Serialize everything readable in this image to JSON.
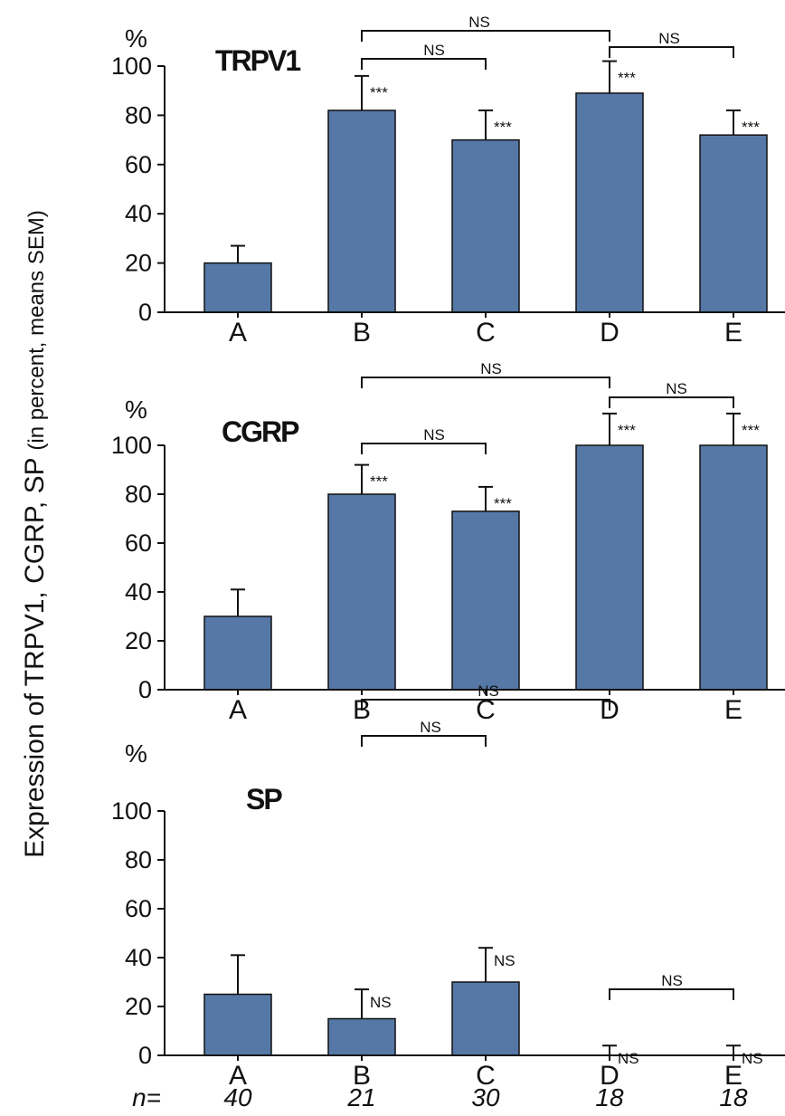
{
  "chart_data": [
    {
      "type": "bar",
      "title": "TRPV1",
      "unit_label": "%",
      "categories": [
        "A",
        "B",
        "C",
        "D",
        "E"
      ],
      "values": [
        20,
        82,
        70,
        89,
        72
      ],
      "errors": [
        7,
        14,
        12,
        13,
        10
      ],
      "significance": [
        "",
        "***",
        "***",
        "***",
        "***"
      ],
      "ylim": [
        0,
        100
      ],
      "yticks": [
        "0",
        "20",
        "40",
        "60",
        "80",
        "100"
      ],
      "comparisons": [
        {
          "from": "B",
          "to": "D",
          "label": "NS"
        },
        {
          "from": "B",
          "to": "C",
          "label": "NS"
        },
        {
          "from": "D",
          "to": "E",
          "label": "NS"
        }
      ],
      "color": "#5578a6"
    },
    {
      "type": "bar",
      "title": "CGRP",
      "unit_label": "%",
      "categories": [
        "A",
        "B",
        "C",
        "D",
        "E"
      ],
      "values": [
        30,
        80,
        73,
        100,
        100
      ],
      "errors": [
        11,
        12,
        10,
        13,
        13
      ],
      "significance": [
        "",
        "***",
        "***",
        "***",
        "***"
      ],
      "ylim": [
        0,
        100
      ],
      "yticks": [
        "0",
        "20",
        "40",
        "60",
        "80",
        "100"
      ],
      "comparisons": [
        {
          "from": "B",
          "to": "D",
          "label": "NS"
        },
        {
          "from": "B",
          "to": "C",
          "label": "NS"
        },
        {
          "from": "D",
          "to": "E",
          "label": "NS"
        }
      ],
      "color": "#5578a6"
    },
    {
      "type": "bar",
      "title": "SP",
      "unit_label": "%",
      "categories": [
        "A",
        "B",
        "C",
        "D",
        "E"
      ],
      "values": [
        25,
        15,
        30,
        0,
        0
      ],
      "errors": [
        16,
        12,
        14,
        4,
        4
      ],
      "significance": [
        "",
        "NS",
        "NS",
        "NS",
        "NS"
      ],
      "ylim": [
        0,
        100
      ],
      "yticks": [
        "0",
        "20",
        "40",
        "60",
        "80",
        "100"
      ],
      "comparisons": [
        {
          "from": "B",
          "to": "D",
          "label": "NS"
        },
        {
          "from": "B",
          "to": "C",
          "label": "NS"
        },
        {
          "from": "D",
          "to": "E",
          "label": "NS"
        }
      ],
      "color": "#5578a6"
    }
  ],
  "y_axis_label": "Expression of TRPV1, CGRP, SP",
  "y_axis_label_suffix": "(in percent, means SEM)",
  "n_label": "n=",
  "n_values": [
    "40",
    "21",
    "30",
    "18",
    "18"
  ]
}
